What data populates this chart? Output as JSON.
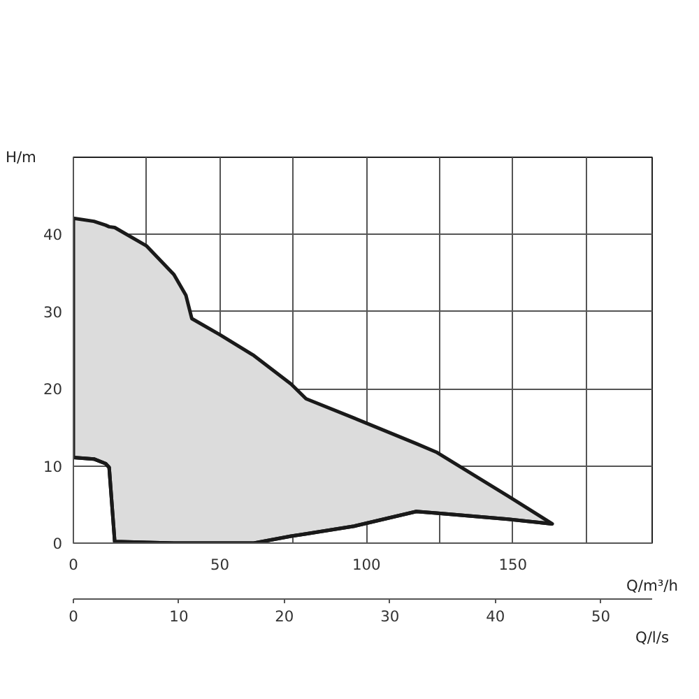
{
  "chart_data": {
    "type": "area",
    "xlabel": "Q/m³/h",
    "ylabel": "H/m",
    "x2label": "Q/l/s",
    "xlim": [
      0,
      197.5
    ],
    "ylim": [
      0,
      50
    ],
    "x2lim": [
      0,
      54.86
    ],
    "xticks": [
      0,
      {
        "value": 25,
        "label": null
      },
      50,
      {
        "value": 75,
        "label": null
      },
      100,
      {
        "value": 125,
        "label": null
      },
      150,
      {
        "value": 175,
        "label": null
      }
    ],
    "yticks": [
      0,
      10,
      20,
      30,
      40,
      {
        "value": 50,
        "label": null
      }
    ],
    "x2ticks": [
      0,
      10,
      20,
      30,
      40,
      50
    ],
    "grid": true,
    "series": [
      {
        "color": "#dcdcdc",
        "x": [
          0,
          7,
          11,
          12.2,
          14.1,
          25,
          34.3,
          38.4,
          40.4,
          50,
          61.6,
          74.3,
          79.4,
          95.8,
          117,
          123.8,
          148.3,
          163.4
        ],
        "values": [
          42.1,
          41.7,
          41.2,
          41,
          40.9,
          38.5,
          34.8,
          32.1,
          29.1,
          27,
          24.3,
          20.6,
          18.7,
          16.2,
          12.9,
          11.8,
          6.1,
          2.5
        ],
        "name": null
      },
      {
        "type": "line",
        "color": "#1a1a1a",
        "x": [
          0,
          7,
          11,
          12.2,
          14.1,
          25,
          34.3,
          38.4,
          40.4,
          50,
          61.6,
          74.3,
          79.4,
          95.8,
          117,
          123.8,
          148.3,
          163.4
        ],
        "values": [
          11.1,
          10.9,
          10.3,
          9.8,
          0.2,
          0.1,
          0,
          0,
          0,
          0,
          0,
          0.9,
          1.2,
          2.2,
          4.1,
          3.9,
          3.1,
          2.5
        ]
      }
    ]
  }
}
